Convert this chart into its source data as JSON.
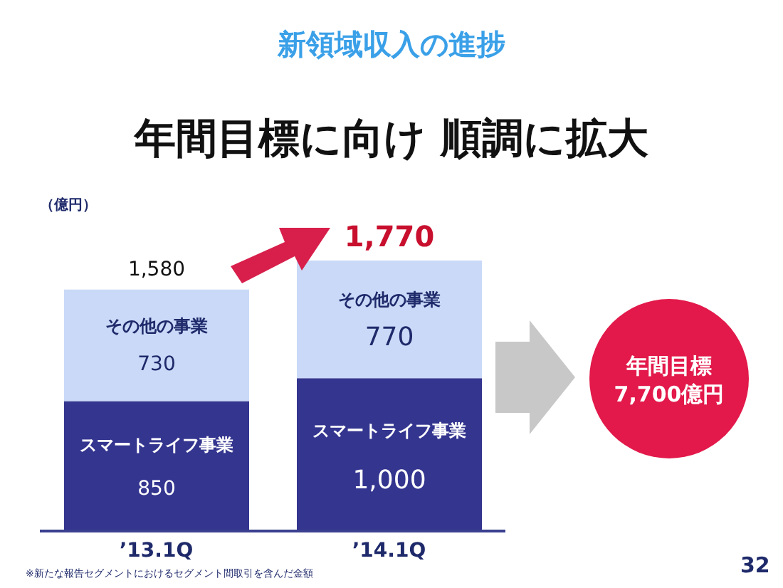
{
  "chart_data": {
    "type": "bar",
    "title": "新領域収入の進捗",
    "subtitle": "年間目標に向け 順調に拡大",
    "ylabel": "（億円）",
    "stacked": true,
    "categories": [
      "’13.1Q",
      "’14.1Q"
    ],
    "series": [
      {
        "name": "スマートライフ事業",
        "color": "#34358f",
        "values": [
          850,
          1000
        ],
        "value_labels": [
          "850",
          "1,000"
        ]
      },
      {
        "name": "その他の事業",
        "color": "#c9d9f7",
        "values": [
          730,
          770
        ],
        "value_labels": [
          "730",
          "770"
        ]
      }
    ],
    "totals": [
      "1,580",
      "1,770"
    ],
    "annotations": [
      "年間目標 7,700億円",
      "※新たな報告セグメントにおけるセグメント間取引を含んだ金額",
      "32"
    ],
    "grid": false,
    "legend": false
  }
}
